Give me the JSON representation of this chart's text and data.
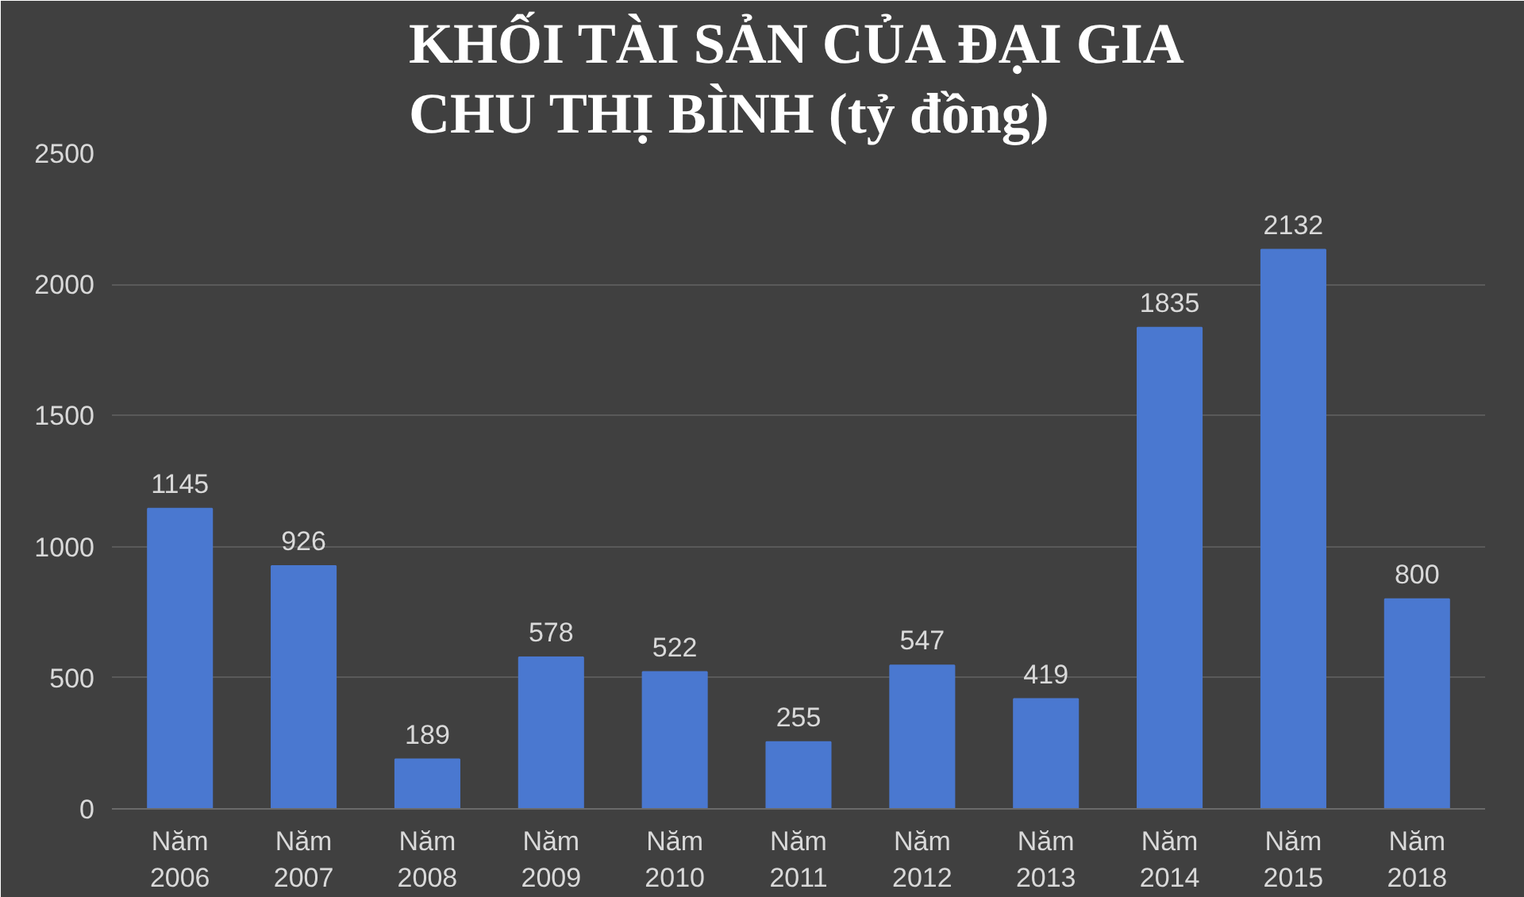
{
  "chart_data": {
    "type": "bar",
    "title": "KHỐI TÀI SẢN CỦA ĐẠI GIA CHU THỊ BÌNH (tỷ đồng)",
    "categories": [
      "Năm 2006",
      "Năm 2007",
      "Năm 2008",
      "Năm 2009",
      "Năm 2010",
      "Năm 2011",
      "Năm 2012",
      "Năm 2013",
      "Năm 2014",
      "Năm 2015",
      "Năm 2018"
    ],
    "values": [
      1145,
      926,
      189,
      578,
      522,
      255,
      547,
      419,
      1835,
      2132,
      800
    ],
    "color": "#4a78d0",
    "ylim": [
      0,
      2500
    ],
    "yticks": [
      0,
      500,
      1000,
      1500,
      2000,
      2500
    ],
    "grid": "y",
    "data_labels": true
  }
}
